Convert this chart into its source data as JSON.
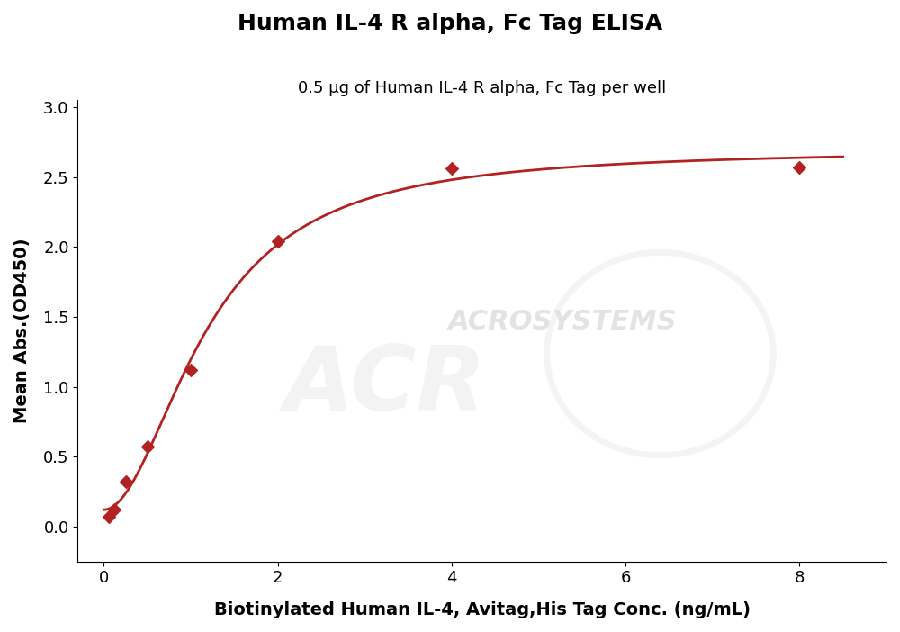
{
  "title": "Human IL-4 R alpha, Fc Tag ELISA",
  "subtitle": "0.5 μg of Human IL-4 R alpha, Fc Tag per well",
  "xlabel": "Biotinylated Human IL-4, Avitag,His Tag Conc. (ng/mL)",
  "ylabel": "Mean Abs.(OD450)",
  "x_data": [
    0.0625,
    0.125,
    0.25,
    0.5,
    1.0,
    2.0,
    4.0,
    8.0
  ],
  "y_data": [
    0.07,
    0.12,
    0.32,
    0.57,
    1.12,
    2.04,
    2.56,
    2.57
  ],
  "xlim": [
    -0.3,
    9.0
  ],
  "ylim": [
    -0.25,
    3.05
  ],
  "xticks": [
    0,
    2,
    4,
    6,
    8
  ],
  "yticks": [
    0.0,
    0.5,
    1.0,
    1.5,
    2.0,
    2.5,
    3.0
  ],
  "color": "#b22222",
  "marker": "D",
  "marker_size": 7,
  "line_width": 2.0,
  "title_fontsize": 18,
  "subtitle_fontsize": 13,
  "axis_label_fontsize": 14,
  "tick_fontsize": 13,
  "background_color": "#ffffff",
  "watermark_text": "ACROSYSTEMS",
  "figsize": [
    10.0,
    7.02
  ],
  "dpi": 100
}
